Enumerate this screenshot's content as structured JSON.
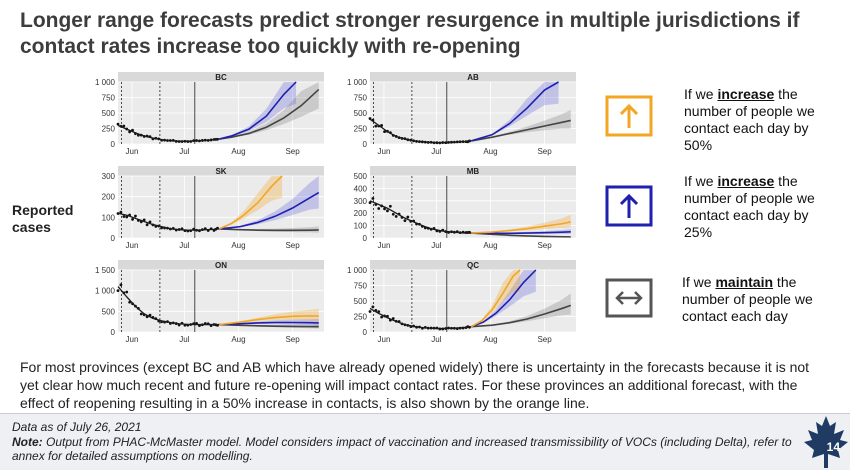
{
  "title": "Longer range forecasts predict stronger resurgence in multiple jurisdictions if contact rates increase too quickly with re-opening",
  "left_label_line1": "Reported",
  "left_label_line2": "cases",
  "colors": {
    "observed": "#1a1a1a",
    "maintain": "#444444",
    "increase25": "#1f1fb0",
    "increase50": "#f2a623",
    "box_gray": "#555555"
  },
  "legend": [
    {
      "pre": "If we ",
      "bold": "increase",
      "post": " the number of people we contact each day by 50%",
      "icon": "up-arrow-icon",
      "color": "#f2a623"
    },
    {
      "pre": "If we ",
      "bold": "increase",
      "post": " the number of people we contact each day by 25%",
      "icon": "up-arrow-icon",
      "color": "#1f1fb0"
    },
    {
      "pre": "If we ",
      "bold": "maintain",
      "post": " the number of people we contact each day",
      "icon": "left-right-arrow-icon",
      "color": "#555555"
    }
  ],
  "body_text": "For most provinces (except BC and AB which have already opened widely) there is uncertainty in the forecasts because it is not yet clear how much recent and future re-opening will impact contact rates. For these provinces an additional forecast, with the effect of reopening resulting in a 50% increase in contacts, is also shown by the orange line.",
  "footer": {
    "data_as_of": "Data as of July 26, 2021",
    "note_label": "Note:",
    "note_text": " Output from PHAC-McMaster model. Model considers impact of vaccination and increased transmissibility of VOCs (including Delta), refer to annex for detailed assumptions on modelling.",
    "page_number": "14"
  },
  "chart_data": [
    {
      "type": "line",
      "title": "BC",
      "x_ticks": [
        "Jun",
        "Jul",
        "Aug",
        "Sep"
      ],
      "y_ticks": [
        "0",
        "250",
        "500",
        "750",
        "1 000"
      ],
      "ylim": [
        0,
        1000
      ],
      "series": [
        {
          "key": "observed",
          "x": [
            0,
            5,
            10,
            15,
            20,
            25,
            30,
            35,
            40,
            45,
            50,
            55,
            58
          ],
          "values": [
            300,
            240,
            180,
            130,
            95,
            70,
            55,
            45,
            45,
            50,
            55,
            70,
            80
          ]
        },
        {
          "key": "maintain",
          "x": [
            58,
            65,
            75,
            85,
            95,
            105,
            115
          ],
          "values": [
            80,
            110,
            170,
            270,
            420,
            620,
            880
          ]
        },
        {
          "key": "increase25",
          "x": [
            58,
            65,
            75,
            85,
            95,
            102
          ],
          "values": [
            80,
            130,
            240,
            450,
            800,
            1000
          ]
        }
      ]
    },
    {
      "type": "line",
      "title": "AB",
      "x_ticks": [
        "Jun",
        "Jul",
        "Aug",
        "Sep"
      ],
      "y_ticks": [
        "0",
        "250",
        "500",
        "750",
        "1 000"
      ],
      "ylim": [
        0,
        1000
      ],
      "series": [
        {
          "key": "observed",
          "x": [
            0,
            5,
            10,
            15,
            20,
            25,
            30,
            35,
            40,
            45,
            50,
            55,
            58
          ],
          "values": [
            400,
            300,
            200,
            120,
            80,
            50,
            35,
            25,
            20,
            25,
            30,
            40,
            50
          ]
        },
        {
          "key": "maintain",
          "x": [
            58,
            70,
            80,
            90,
            100,
            110,
            115
          ],
          "values": [
            50,
            110,
            170,
            230,
            290,
            350,
            380
          ]
        },
        {
          "key": "increase25",
          "x": [
            58,
            70,
            80,
            90,
            100,
            108
          ],
          "values": [
            50,
            150,
            330,
            580,
            870,
            1000
          ]
        }
      ]
    },
    {
      "type": "line",
      "title": "SK",
      "x_ticks": [
        "Jun",
        "Jul",
        "Aug",
        "Sep"
      ],
      "y_ticks": [
        "0",
        "100",
        "200",
        "300"
      ],
      "ylim": [
        0,
        300
      ],
      "series": [
        {
          "key": "observed",
          "x": [
            0,
            5,
            10,
            15,
            20,
            25,
            30,
            35,
            40,
            45,
            50,
            55,
            58
          ],
          "values": [
            120,
            110,
            95,
            80,
            65,
            55,
            45,
            40,
            38,
            38,
            40,
            42,
            44
          ]
        },
        {
          "key": "maintain",
          "x": [
            58,
            70,
            80,
            90,
            100,
            110,
            115
          ],
          "values": [
            44,
            40,
            38,
            37,
            37,
            38,
            39
          ]
        },
        {
          "key": "increase25",
          "x": [
            58,
            70,
            80,
            90,
            100,
            110,
            115
          ],
          "values": [
            44,
            55,
            75,
            105,
            145,
            195,
            220
          ]
        },
        {
          "key": "increase50",
          "x": [
            58,
            65,
            72,
            80,
            88,
            94
          ],
          "values": [
            44,
            70,
            110,
            170,
            250,
            300
          ]
        }
      ]
    },
    {
      "type": "line",
      "title": "MB",
      "x_ticks": [
        "Jun",
        "Jul",
        "Aug",
        "Sep"
      ],
      "y_ticks": [
        "0",
        "100",
        "200",
        "300",
        "400",
        "500"
      ],
      "ylim": [
        0,
        500
      ],
      "series": [
        {
          "key": "observed",
          "x": [
            0,
            5,
            10,
            15,
            20,
            25,
            30,
            35,
            40,
            45,
            50,
            55,
            58
          ],
          "values": [
            300,
            270,
            240,
            200,
            160,
            130,
            100,
            75,
            60,
            50,
            45,
            40,
            40
          ]
        },
        {
          "key": "maintain",
          "x": [
            58,
            70,
            80,
            90,
            100,
            110,
            115
          ],
          "values": [
            40,
            30,
            22,
            17,
            13,
            10,
            9
          ]
        },
        {
          "key": "increase25",
          "x": [
            58,
            70,
            80,
            90,
            100,
            110,
            115
          ],
          "values": [
            40,
            38,
            38,
            40,
            43,
            47,
            50
          ]
        },
        {
          "key": "increase50",
          "x": [
            58,
            70,
            80,
            90,
            100,
            110,
            115
          ],
          "values": [
            40,
            48,
            60,
            75,
            95,
            115,
            130
          ]
        }
      ]
    },
    {
      "type": "line",
      "title": "ON",
      "x_ticks": [
        "Jun",
        "Jul",
        "Aug",
        "Sep"
      ],
      "y_ticks": [
        "0",
        "500",
        "1 000",
        "1 500"
      ],
      "ylim": [
        0,
        1500
      ],
      "series": [
        {
          "key": "observed",
          "x": [
            0,
            5,
            10,
            15,
            20,
            25,
            30,
            35,
            40,
            45,
            50,
            55,
            58
          ],
          "values": [
            1100,
            850,
            620,
            440,
            330,
            270,
            230,
            200,
            185,
            180,
            180,
            180,
            180
          ]
        },
        {
          "key": "maintain",
          "x": [
            58,
            70,
            80,
            90,
            100,
            110,
            115
          ],
          "values": [
            180,
            160,
            150,
            140,
            135,
            130,
            128
          ]
        },
        {
          "key": "increase25",
          "x": [
            58,
            70,
            80,
            90,
            100,
            110,
            115
          ],
          "values": [
            180,
            200,
            220,
            230,
            230,
            225,
            220
          ]
        },
        {
          "key": "increase50",
          "x": [
            58,
            70,
            80,
            90,
            100,
            110,
            115
          ],
          "values": [
            180,
            240,
            300,
            350,
            380,
            390,
            385
          ]
        }
      ]
    },
    {
      "type": "line",
      "title": "QC",
      "x_ticks": [
        "Jun",
        "Jul",
        "Aug",
        "Sep"
      ],
      "y_ticks": [
        "0",
        "250",
        "500",
        "750",
        "1 000"
      ],
      "ylim": [
        0,
        1000
      ],
      "series": [
        {
          "key": "observed",
          "x": [
            0,
            5,
            10,
            15,
            20,
            25,
            30,
            35,
            40,
            45,
            50,
            55,
            58
          ],
          "values": [
            380,
            300,
            230,
            170,
            120,
            90,
            70,
            60,
            55,
            60,
            65,
            75,
            85
          ]
        },
        {
          "key": "maintain",
          "x": [
            58,
            70,
            80,
            90,
            100,
            110,
            115
          ],
          "values": [
            85,
            110,
            150,
            210,
            290,
            380,
            430
          ]
        },
        {
          "key": "increase25",
          "x": [
            58,
            65,
            72,
            80,
            88,
            95
          ],
          "values": [
            85,
            160,
            300,
            520,
            800,
            1000
          ]
        },
        {
          "key": "increase50",
          "x": [
            58,
            64,
            70,
            76,
            82,
            86
          ],
          "values": [
            85,
            180,
            360,
            620,
            900,
            1000
          ]
        }
      ]
    }
  ]
}
